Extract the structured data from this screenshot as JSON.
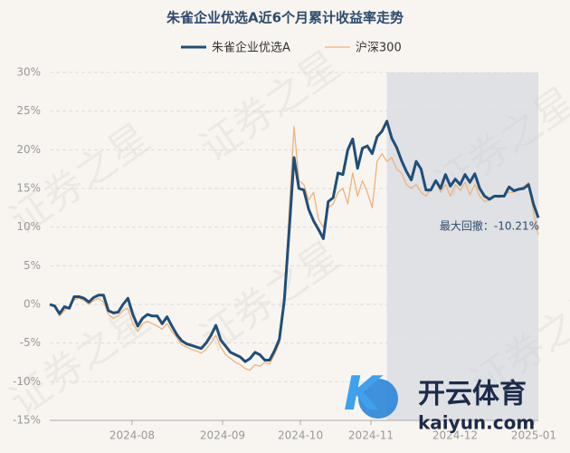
{
  "chart_data": {
    "type": "line",
    "title": "朱雀企业优选A近6个月累计收益率走势",
    "annotation": "最大回撤：-10.21%",
    "watermarks": [
      "证券之星",
      "开云体育",
      "kaiyun.com"
    ],
    "legend": "top",
    "grid": true,
    "xlim": [
      0,
      100
    ],
    "xticks": [
      {
        "value": 16.85,
        "label": "2024-08"
      },
      {
        "value": 35.37,
        "label": "2024-09"
      },
      {
        "value": 51.3,
        "label": "2024-10"
      },
      {
        "value": 65.74,
        "label": "2024-11"
      },
      {
        "value": 82.96,
        "label": "2024-12"
      },
      {
        "value": 99.07,
        "label": "2025-01"
      }
    ],
    "ylim": [
      -15,
      30
    ],
    "yticks": [
      {
        "value": -15,
        "label": "-15%"
      },
      {
        "value": -10,
        "label": "-10%"
      },
      {
        "value": -5,
        "label": "-5%"
      },
      {
        "value": 0,
        "label": "0%"
      },
      {
        "value": 5,
        "label": "5%"
      },
      {
        "value": 10,
        "label": "10%"
      },
      {
        "value": 15,
        "label": "15%"
      },
      {
        "value": 20,
        "label": "20%"
      },
      {
        "value": 25,
        "label": "25%"
      },
      {
        "value": 30,
        "label": "30%"
      }
    ],
    "series": [
      {
        "name": "朱雀企业优选A",
        "color": "#1f4e79",
        "width": 3,
        "values": [
          0,
          -0.2,
          -1.2,
          -0.3,
          -0.5,
          1,
          1,
          0.8,
          0.3,
          0.9,
          1.2,
          1.2,
          -0.8,
          -1.1,
          -1,
          0,
          0.8,
          -1.3,
          -2.8,
          -1.8,
          -1.3,
          -1.5,
          -1.5,
          -2.5,
          -1.6,
          -2.8,
          -3.9,
          -4.7,
          -5.1,
          -5.3,
          -5.5,
          -5.7,
          -5,
          -4,
          -2.7,
          -4.6,
          -5.4,
          -6.2,
          -6.5,
          -6.8,
          -7.4,
          -7,
          -6.2,
          -6.5,
          -7.2,
          -7.2,
          -6,
          -4.5,
          0.5,
          9.5,
          19,
          15,
          14.8,
          12.3,
          10.8,
          9.7,
          8.5,
          13.3,
          13.8,
          17,
          16.8,
          20,
          21.4,
          17.6,
          20.2,
          20.5,
          19.5,
          21.7,
          22.4,
          23.7,
          21.5,
          20.3,
          18.6,
          17.2,
          16.1,
          18.5,
          17.5,
          14.8,
          14.8,
          16,
          15,
          16.8,
          15.3,
          16.2,
          15.5,
          16.8,
          15.8,
          16.9,
          15,
          14,
          13.6,
          14,
          14,
          14,
          15.2,
          14.7,
          14.9,
          15,
          15.5,
          13,
          11.2
        ]
      },
      {
        "name": "沪深300",
        "color": "#f0b27a",
        "width": 1.3,
        "values": [
          0,
          -0.3,
          -1.5,
          -0.8,
          -0.3,
          0.6,
          0.8,
          0.5,
          0,
          0.5,
          0.8,
          0.3,
          -1.3,
          -1.8,
          -1.5,
          -0.8,
          -0.5,
          -2.5,
          -3.5,
          -2.5,
          -2.2,
          -2.5,
          -2.8,
          -3.2,
          -2.5,
          -3.5,
          -4.3,
          -5.2,
          -5.5,
          -5.8,
          -6,
          -6.3,
          -5.8,
          -5,
          -4,
          -5.5,
          -6.5,
          -7,
          -7.5,
          -7.8,
          -8.3,
          -8.5,
          -7.8,
          -8,
          -7.5,
          -7.7,
          -6.5,
          -5,
          1,
          12,
          23,
          16,
          15.5,
          13.5,
          14.5,
          11,
          10,
          12.5,
          13,
          14.5,
          15,
          13,
          17,
          14,
          16,
          14.5,
          12.5,
          18.5,
          19.5,
          18.5,
          19,
          17.5,
          17,
          15.5,
          15,
          15.5,
          14.5,
          14,
          15,
          16,
          14.5,
          15.5,
          14,
          15.5,
          14.8,
          15.8,
          14.2,
          15.5,
          14,
          13.3,
          13.5,
          14,
          13.8,
          14.2,
          14.5,
          14.5,
          15,
          15.2,
          15.8,
          12,
          9
        ]
      }
    ]
  }
}
